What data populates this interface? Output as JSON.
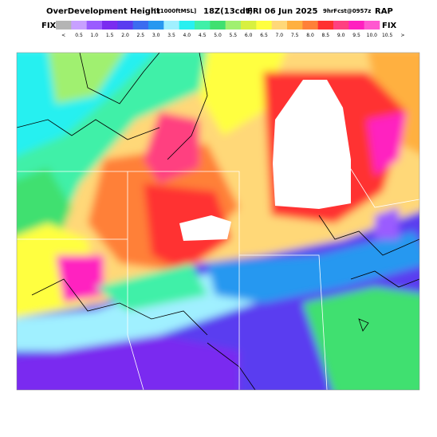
{
  "header": {
    "parts": [
      "OverDevelopment Height",
      "[x1000ftMSL]",
      "18Z(13cdt)",
      "FRI 06 Jun 2025",
      "9hrFcst@0957z",
      "RAP"
    ]
  },
  "legend": {
    "left": "FIX",
    "right": "FIX",
    "labels": [
      "<",
      "0.5",
      "1.0",
      "1.5",
      "2.0",
      "2.5",
      "3.0",
      "3.5",
      "4.0",
      "4.5",
      "5.0",
      "5.5",
      "6.0",
      "6.5",
      "7.0",
      "7.5",
      "8.0",
      "8.5",
      "9.0",
      "9.5",
      "10.0",
      "10.5",
      ">"
    ],
    "colors": [
      "#b4b4b4",
      "#c8a0ff",
      "#9a5cff",
      "#7a2cf0",
      "#5a3cf0",
      "#3c6cf0",
      "#2898f0",
      "#a0f0ff",
      "#28f0f0",
      "#40f0a8",
      "#40e070",
      "#a0f070",
      "#d8f040",
      "#ffff40",
      "#ffd878",
      "#ffb040",
      "#ff8038",
      "#ff3030",
      "#ff4080",
      "#ff20c0",
      "#ff58d0"
    ]
  }
}
